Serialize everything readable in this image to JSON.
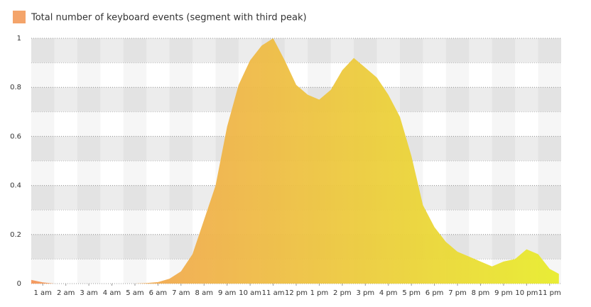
{
  "chart_data": {
    "type": "area",
    "legend": "Total number of keyboard events (segment with third peak)",
    "legend_color": "#f4a46a",
    "color_start": "#f4965a",
    "color_end": "#e8ec2c",
    "x": [
      0.5,
      1,
      1.5,
      2,
      2.5,
      3,
      3.5,
      4,
      4.5,
      5,
      5.5,
      6,
      6.5,
      7,
      7.5,
      8,
      8.5,
      9,
      9.5,
      10,
      10.5,
      11,
      11.5,
      12,
      12.5,
      13,
      13.5,
      14,
      14.5,
      15,
      15.5,
      16,
      16.5,
      17,
      17.5,
      18,
      18.5,
      19,
      19.5,
      20,
      20.5,
      21,
      21.5,
      22,
      22.5,
      23,
      23.4
    ],
    "series": [
      {
        "name": "Total number of keyboard events (segment with third peak)",
        "values": [
          0.015,
          0.005,
          0,
          0,
          0,
          0,
          0,
          0,
          0,
          0,
          0.002,
          0.006,
          0.02,
          0.05,
          0.12,
          0.26,
          0.4,
          0.64,
          0.81,
          0.91,
          0.97,
          1.0,
          0.91,
          0.81,
          0.77,
          0.75,
          0.79,
          0.87,
          0.92,
          0.88,
          0.84,
          0.77,
          0.68,
          0.52,
          0.32,
          0.23,
          0.17,
          0.13,
          0.11,
          0.09,
          0.07,
          0.09,
          0.1,
          0.14,
          0.12,
          0.06,
          0.04
        ]
      }
    ],
    "xlim": [
      0.5,
      23.5
    ],
    "xticks": [
      {
        "value": 1,
        "label": "1 am"
      },
      {
        "value": 2,
        "label": "2 am"
      },
      {
        "value": 3,
        "label": "3 am"
      },
      {
        "value": 4,
        "label": "4 am"
      },
      {
        "value": 5,
        "label": "5 am"
      },
      {
        "value": 6,
        "label": "6 am"
      },
      {
        "value": 7,
        "label": "7 am"
      },
      {
        "value": 8,
        "label": "8 am"
      },
      {
        "value": 9,
        "label": "9 am"
      },
      {
        "value": 10,
        "label": "10 am"
      },
      {
        "value": 11,
        "label": "11 am"
      },
      {
        "value": 12,
        "label": "12 pm"
      },
      {
        "value": 13,
        "label": "1 pm"
      },
      {
        "value": 14,
        "label": "2 pm"
      },
      {
        "value": 15,
        "label": "3 pm"
      },
      {
        "value": 16,
        "label": "4 pm"
      },
      {
        "value": 17,
        "label": "5 pm"
      },
      {
        "value": 18,
        "label": "6 pm"
      },
      {
        "value": 19,
        "label": "7 pm"
      },
      {
        "value": 20,
        "label": "8 pm"
      },
      {
        "value": 21,
        "label": "9 pm"
      },
      {
        "value": 22,
        "label": "10 pm"
      },
      {
        "value": 23,
        "label": "11 pm"
      }
    ],
    "ylim": [
      0,
      1
    ],
    "yticks": [
      0,
      0.2,
      0.4,
      0.6,
      0.8,
      1
    ],
    "grid": true
  }
}
